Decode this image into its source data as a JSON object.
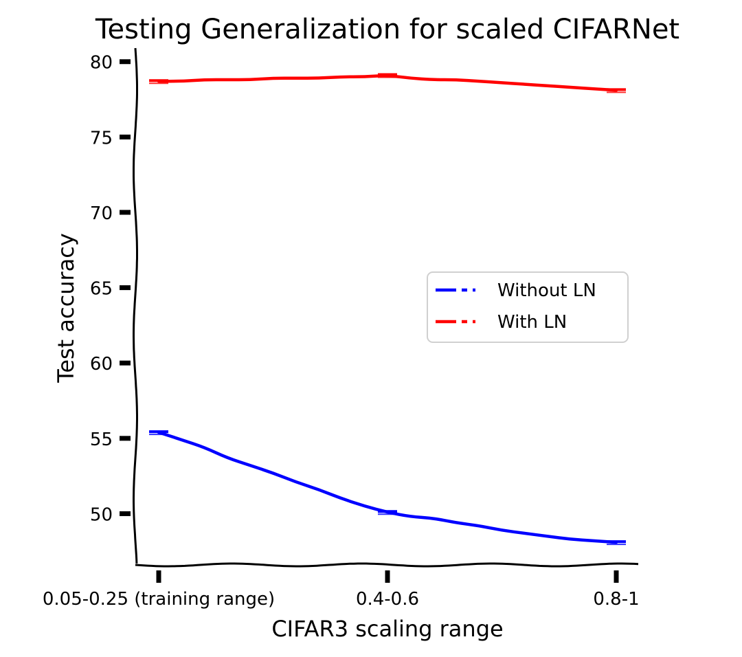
{
  "chart_data": {
    "type": "line",
    "title": "Testing Generalization for scaled CIFARNet",
    "xlabel": "CIFAR3 scaling range",
    "ylabel": "Test accuracy",
    "categories": [
      "0.05-0.25 (training range)",
      "0.4-0.6",
      "0.8-1"
    ],
    "yticks": [
      50,
      55,
      60,
      65,
      70,
      75,
      80
    ],
    "ylim": [
      46.6,
      80.9
    ],
    "xlim": [
      -0.1,
      2.1
    ],
    "grid": false,
    "legend_position": "center-right",
    "series": [
      {
        "name": "Without LN",
        "color": "#0000ff",
        "x": [
          0,
          0.1,
          0.2,
          0.3,
          0.4,
          0.5,
          0.6,
          0.7,
          0.8,
          0.9,
          1.0,
          1.1,
          1.2,
          1.3,
          1.4,
          1.5,
          1.6,
          1.7,
          1.8,
          1.9,
          2.0
        ],
        "y": [
          55.4,
          54.9,
          54.4,
          53.7,
          53.2,
          52.7,
          52.1,
          51.6,
          51.0,
          50.5,
          50.1,
          49.8,
          49.7,
          49.4,
          49.2,
          48.9,
          48.7,
          48.5,
          48.3,
          48.2,
          48.1
        ],
        "points_x": [
          0,
          1,
          2
        ],
        "points_y": [
          55.4,
          50.1,
          48.1
        ]
      },
      {
        "name": "With LN",
        "color": "#ff0000",
        "x": [
          0,
          0.1,
          0.2,
          0.3,
          0.4,
          0.5,
          0.6,
          0.7,
          0.8,
          0.9,
          1.0,
          1.1,
          1.2,
          1.3,
          1.4,
          1.5,
          1.6,
          1.7,
          1.8,
          1.9,
          2.0
        ],
        "y": [
          78.7,
          78.7,
          78.8,
          78.8,
          78.8,
          78.9,
          78.9,
          78.9,
          79.0,
          79.0,
          79.1,
          78.9,
          78.8,
          78.8,
          78.7,
          78.6,
          78.5,
          78.4,
          78.3,
          78.2,
          78.1
        ],
        "points_x": [
          0,
          1,
          2
        ],
        "points_y": [
          78.7,
          79.1,
          78.1
        ]
      }
    ]
  }
}
